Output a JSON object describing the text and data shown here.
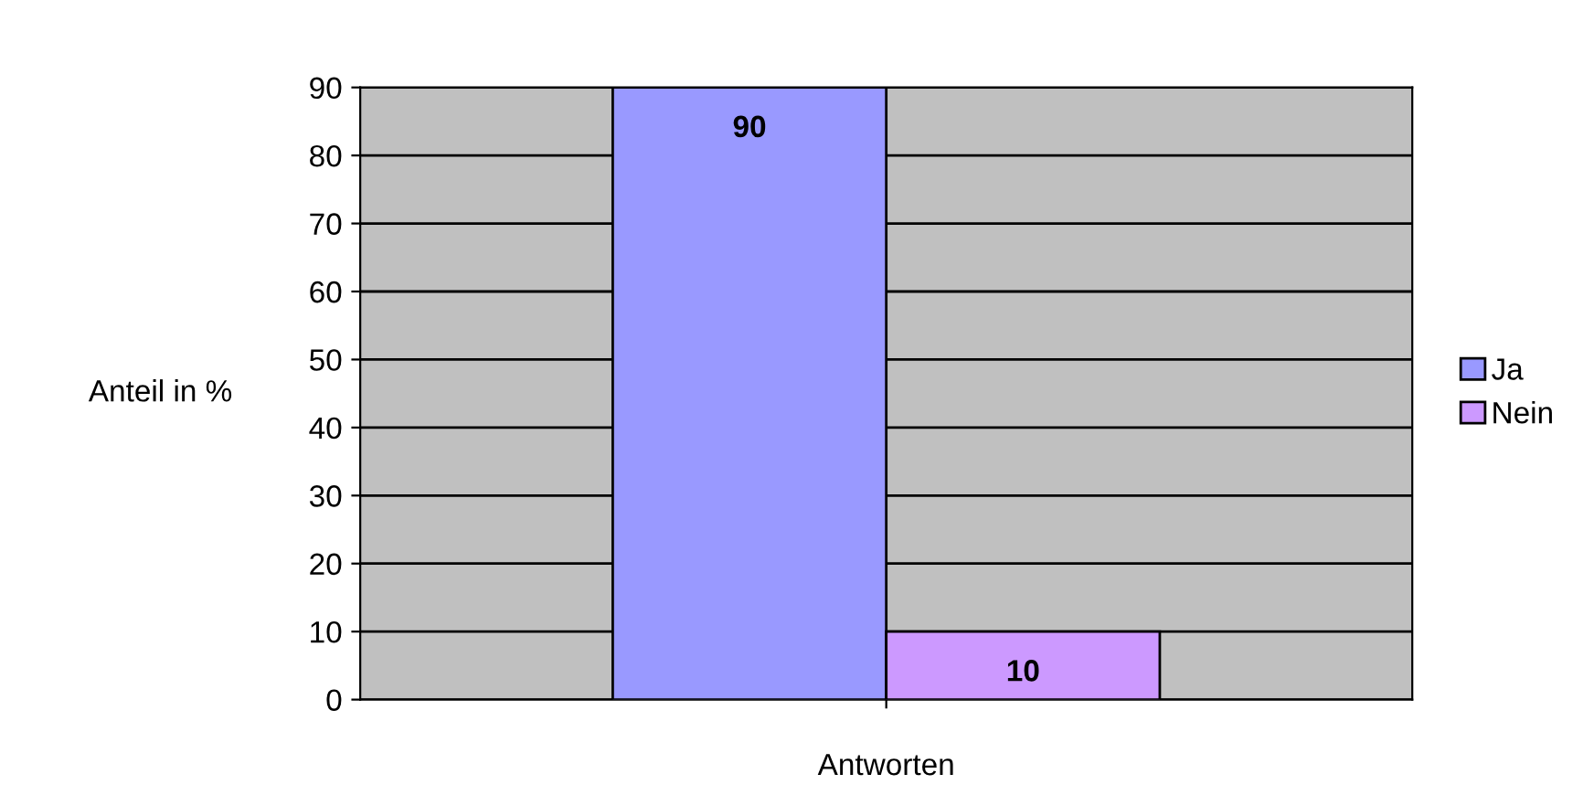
{
  "chart_data": {
    "type": "bar",
    "xlabel": "Antworten",
    "ylabel": "Anteil in %",
    "categories": [
      null
    ],
    "series": [
      {
        "name": "Ja",
        "color": "#9999ff",
        "values": [
          90
        ]
      },
      {
        "name": "Nein",
        "color": "#cc99ff",
        "values": [
          10
        ]
      }
    ],
    "ylim": [
      0,
      90
    ],
    "yticks": [
      0,
      10,
      20,
      30,
      40,
      50,
      60,
      70,
      80,
      90
    ],
    "grid": "y",
    "legend": "right",
    "data_labels": true
  }
}
